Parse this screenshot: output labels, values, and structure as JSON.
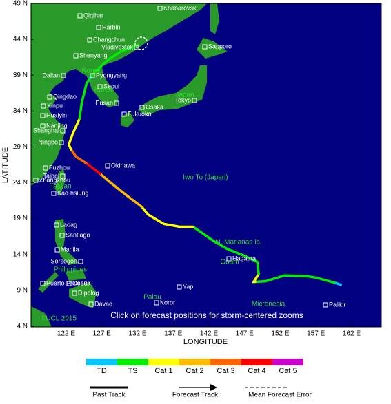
{
  "axes": {
    "x_title": "LONGITUDE",
    "y_title": "LATITUDE",
    "lat_labels": [
      "49 N",
      "44 N",
      "39 N",
      "34 N",
      "29 N",
      "24 N",
      "19 N",
      "14 N",
      "9 N",
      "4 N"
    ],
    "lon_labels": [
      "122 E",
      "127 E",
      "132 E",
      "137 E",
      "142 E",
      "147 E",
      "152 E",
      "157 E",
      "162 E"
    ]
  },
  "cities": [
    "Khabarovsk",
    "Qiqihar",
    "Harbin",
    "Changchun",
    "Vladivostok",
    "Sapporo",
    "Shenyang",
    "Dalian",
    "Pyongyang",
    "Seoul",
    "Qingdao",
    "Pusan",
    "Tokyo",
    "Osaka",
    "Fukuoka",
    "Xinpu",
    "Huaiyin",
    "Nanjing",
    "Shanghai",
    "Ningbo",
    "Okinawa",
    "Fuzhou",
    "Taipei",
    "Zhangzhou",
    "Kao-hsiung",
    "Laoag",
    "Santiago",
    "Manila",
    "Sorsogon",
    "Puerto Princesa",
    "Cebu",
    "Dipolog",
    "Davao",
    "Hagatna",
    "Yap",
    "Koror",
    "Palikir"
  ],
  "regions": [
    "Korea",
    "Korea",
    "Japan",
    "Taiwan",
    "Philippines",
    "Iwo To (Japan)",
    "N. Marianas Is.",
    "Guam",
    "Palau",
    "Micronesia"
  ],
  "credit": "©UCL 2015",
  "hint": "Click on forecast positions for storm-centered zooms",
  "legend": {
    "categories": [
      {
        "label": "TD",
        "color": "#00c8ff"
      },
      {
        "label": "TS",
        "color": "#00ee00"
      },
      {
        "label": "Cat 1",
        "color": "#ffff00"
      },
      {
        "label": "Cat 2",
        "color": "#ffbb00"
      },
      {
        "label": "Cat 3",
        "color": "#ff6600"
      },
      {
        "label": "Cat 4",
        "color": "#ff0000"
      },
      {
        "label": "Cat 5",
        "color": "#cc00cc"
      }
    ],
    "past_track": "Past Track",
    "forecast_track": "Forecast Track",
    "mean_error": "Mean Forecast Error"
  },
  "track": [
    {
      "cat": 0,
      "points": [
        [
          160.4,
          9.7
        ],
        [
          159.5,
          10.0
        ]
      ]
    },
    {
      "cat": 1,
      "points": [
        [
          159.5,
          10.0
        ],
        [
          156.9,
          10.7
        ],
        [
          155.6,
          10.9
        ],
        [
          152.5,
          11.0
        ],
        [
          149.9,
          10.2
        ],
        [
          148.4,
          10.1
        ]
      ]
    },
    {
      "cat": 2,
      "points": [
        [
          148.4,
          10.1
        ],
        [
          148.2,
          10.1
        ],
        [
          148.9,
          11.2
        ]
      ]
    },
    {
      "cat": 1,
      "points": [
        [
          148.9,
          11.2
        ],
        [
          148.7,
          12.9
        ],
        [
          147.0,
          13.7
        ],
        [
          144.5,
          14.7
        ],
        [
          142.9,
          15.6
        ],
        [
          139.7,
          17.8
        ]
      ]
    },
    {
      "cat": 2,
      "points": [
        [
          139.7,
          17.8
        ],
        [
          137.8,
          17.8
        ],
        [
          135.6,
          18.2
        ],
        [
          133.4,
          19.5
        ],
        [
          132.5,
          20.6
        ]
      ]
    },
    {
      "cat": 3,
      "points": [
        [
          132.5,
          20.6
        ],
        [
          130.5,
          22.1
        ],
        [
          128.1,
          24.0
        ],
        [
          126.7,
          25.2
        ]
      ]
    },
    {
      "cat": 5,
      "points": [
        [
          126.7,
          25.2
        ],
        [
          124.7,
          26.7
        ]
      ]
    },
    {
      "cat": 4,
      "points": [
        [
          124.7,
          26.7
        ],
        [
          123.3,
          27.6
        ],
        [
          122.6,
          28.6
        ]
      ]
    },
    {
      "cat": 2,
      "points": [
        [
          122.6,
          28.6
        ],
        [
          122.3,
          29.3
        ],
        [
          122.8,
          30.7
        ],
        [
          123.8,
          32.9
        ]
      ]
    },
    {
      "cat": 1,
      "points": [
        [
          123.8,
          32.9
        ],
        [
          124.1,
          35.1
        ],
        [
          124.8,
          37.9
        ],
        [
          125.3,
          38.6
        ]
      ]
    },
    {
      "cat": 0,
      "points": [
        [
          125.3,
          38.6
        ],
        [
          125.5,
          38.9
        ]
      ]
    },
    {
      "cat": 1,
      "points": [
        [
          125.5,
          38.9
        ],
        [
          127.6,
          41.0
        ],
        [
          129.6,
          42.3
        ],
        [
          132.0,
          43.2
        ]
      ]
    }
  ]
}
